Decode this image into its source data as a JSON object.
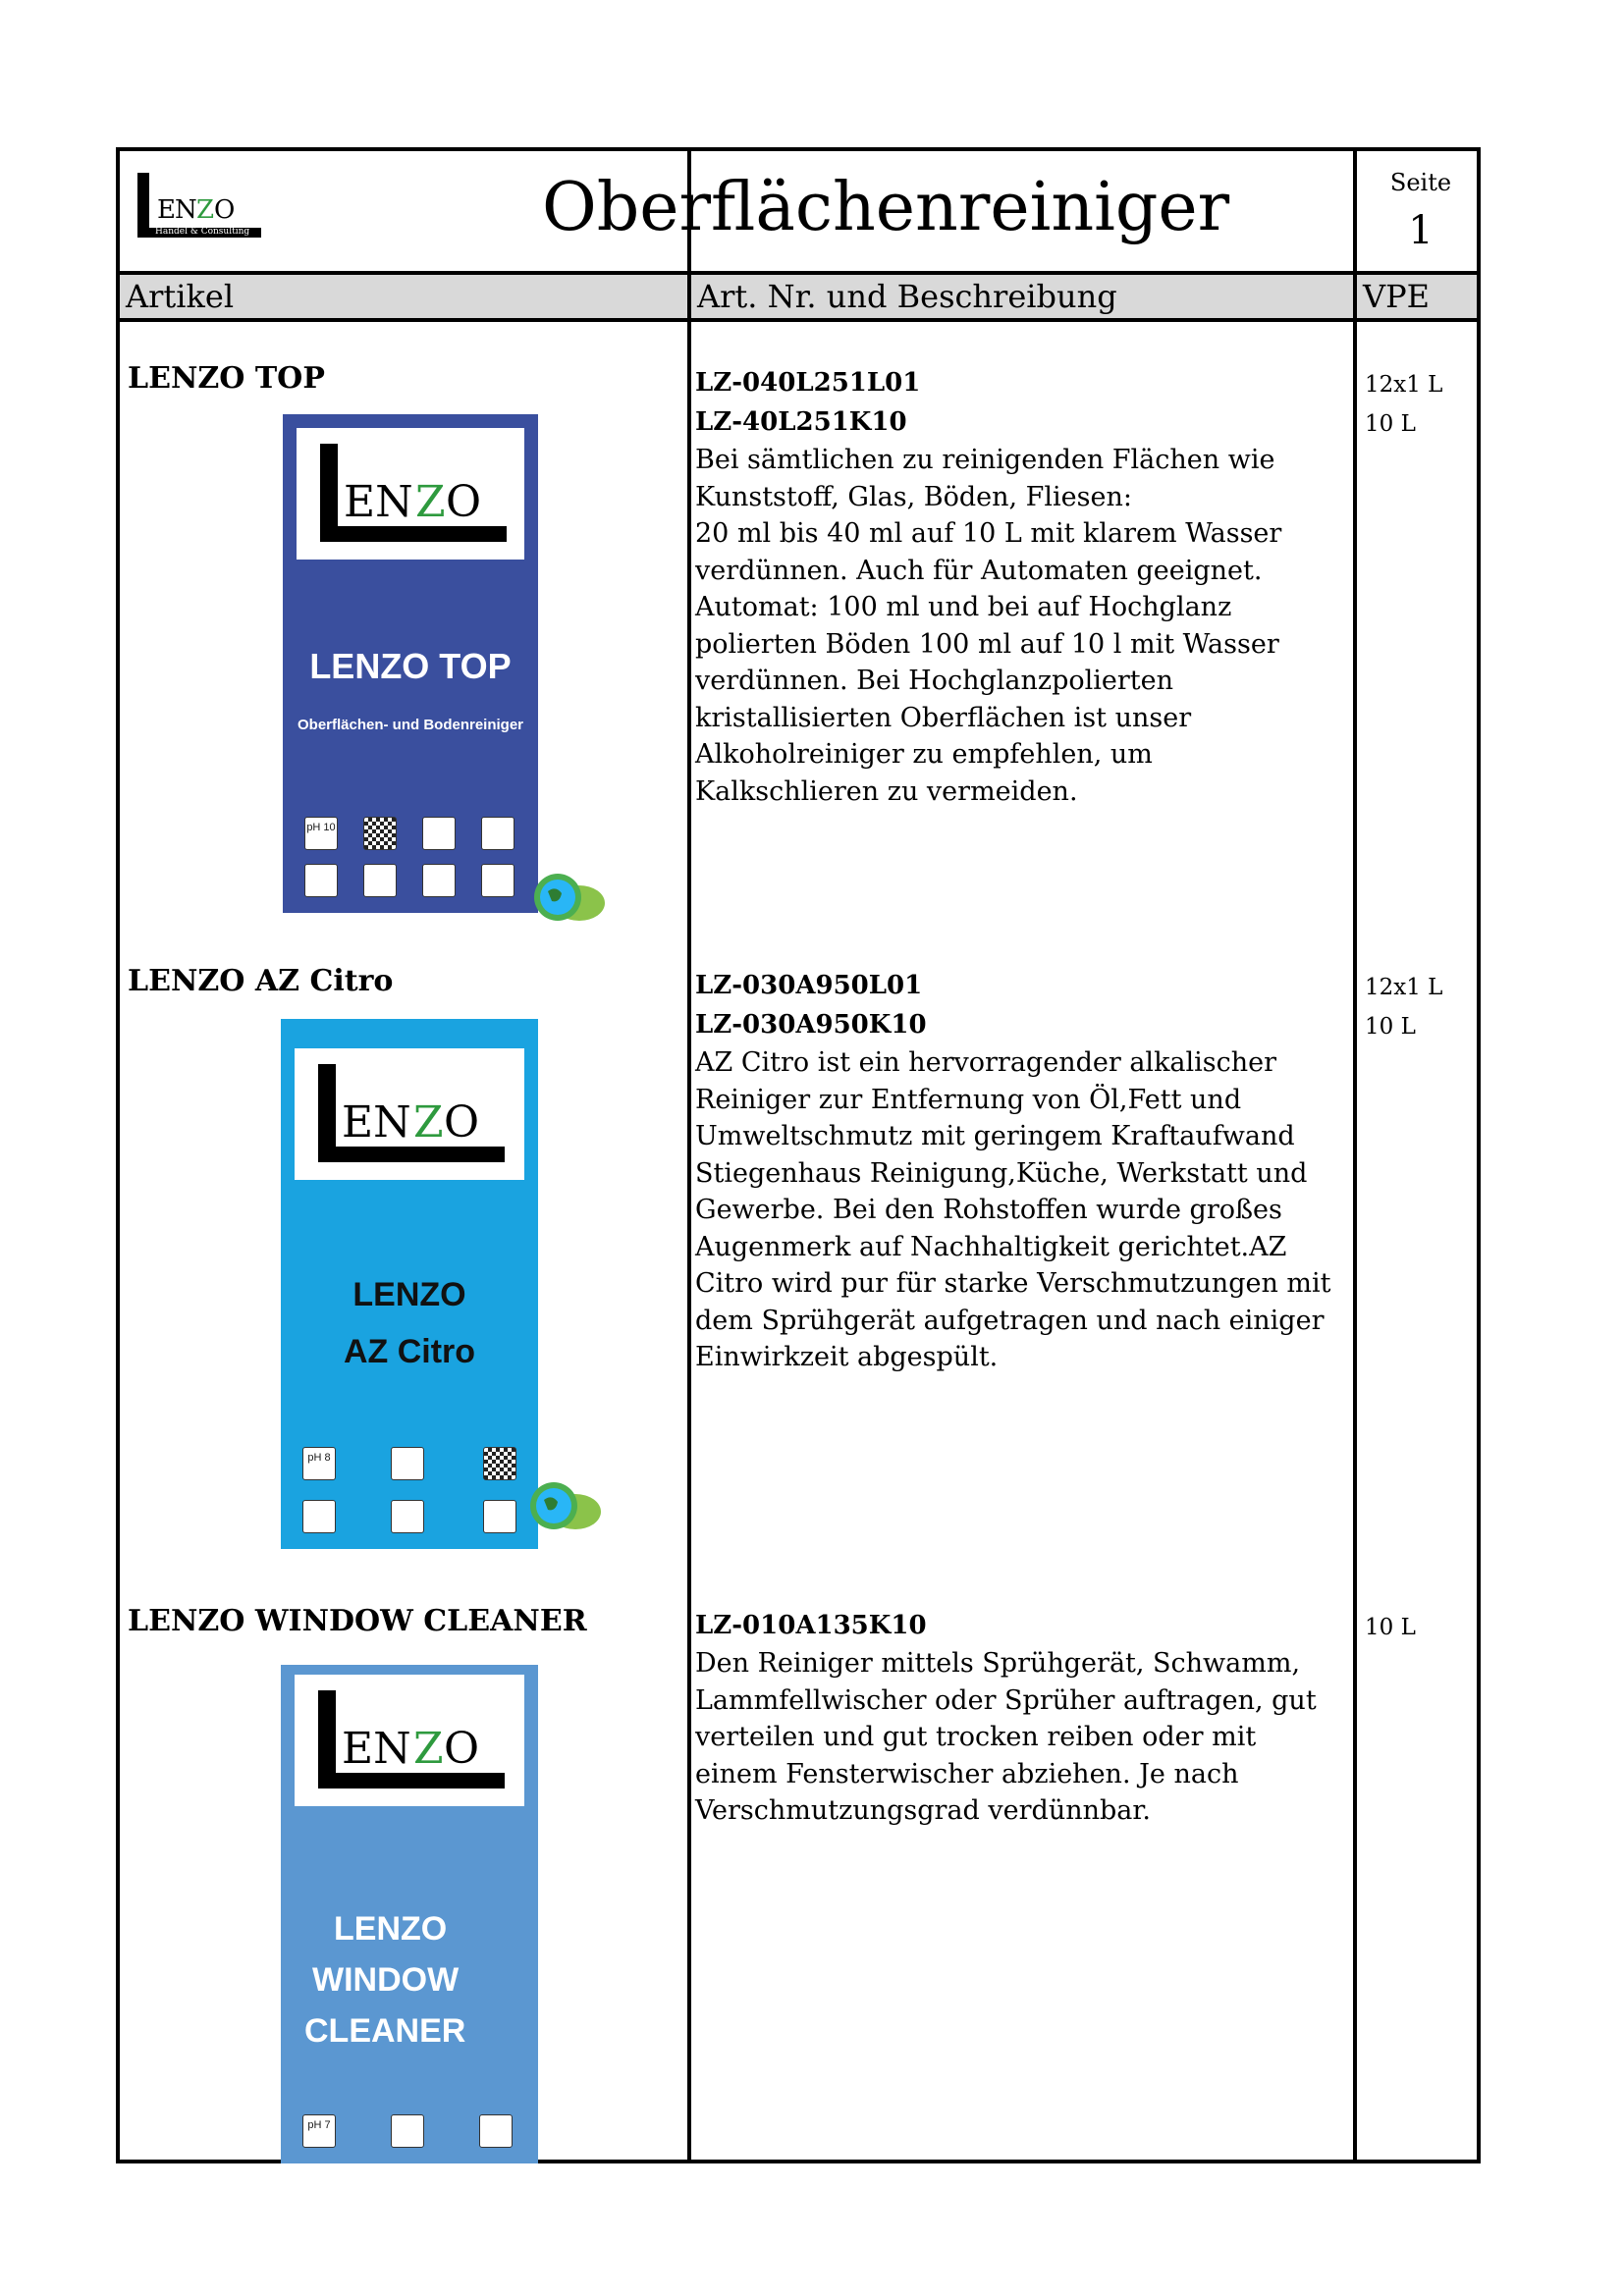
{
  "header": {
    "logo_text": "LENZO",
    "logo_sub": "Handel & Consulting",
    "title": "Oberflächenreiniger",
    "seite_label": "Seite",
    "seite_num": "1"
  },
  "columns": {
    "artikel": "Artikel",
    "beschreibung": "Art. Nr. und Beschreibung",
    "vpe": "VPE"
  },
  "products": [
    {
      "name": "LENZO TOP",
      "codes": [
        "LZ-040L251L01",
        "LZ-40L251K10"
      ],
      "vpe": [
        "12x1 L",
        "10 L"
      ],
      "description": [
        "Bei sämtlichen zu reinigenden Flächen wie",
        "Kunststoff, Glas, Böden, Fliesen:",
        "20 ml bis 40 ml auf 10 L mit klarem Wasser",
        "verdünnen. Auch für Automaten geeignet.",
        "Automat: 100 ml und bei auf Hochglanz",
        "polierten Böden 100 ml auf 10 l mit Wasser",
        "verdünnen. Bei Hochglanzpolierten",
        "kristallisierten Oberflächen ist unser",
        "Alkoholreiniger zu empfehlen, um",
        "Kalkschlieren zu vermeiden."
      ],
      "label_logo": "LENZO",
      "label_title": "LENZO TOP",
      "label_sub": "Oberflächen- und Bodenreiniger",
      "label_ph": "pH 10",
      "color": "#3a4f9e"
    },
    {
      "name": "LENZO AZ Citro",
      "codes": [
        "LZ-030A950L01",
        "LZ-030A950K10"
      ],
      "vpe": [
        "12x1 L",
        "10 L"
      ],
      "description": [
        "AZ Citro ist ein hervorragender alkalischer",
        "Reiniger zur Entfernung von Öl,Fett und",
        "Umweltschmutz mit geringem Kraftaufwand",
        "Stiegenhaus Reinigung,Küche, Werkstatt und",
        "Gewerbe. Bei den Rohstoffen wurde großes",
        "Augenmerk auf Nachhaltigkeit gerichtet.AZ",
        "Citro wird pur für starke Verschmutzungen mit",
        "dem Sprühgerät aufgetragen und nach einiger",
        "Einwirkzeit abgespült."
      ],
      "label_logo": "LENZO",
      "label_title_1": "LENZO",
      "label_title_2": "AZ Citro",
      "label_ph": "pH 8",
      "color": "#1aa3e0"
    },
    {
      "name": "LENZO WINDOW CLEANER",
      "codes": [
        "LZ-010A135K10"
      ],
      "vpe": [
        "10 L"
      ],
      "description": [
        "Den Reiniger mittels Sprühgerät, Schwamm,",
        "Lammfellwischer oder Sprüher auftragen, gut",
        "verteilen und gut trocken reiben oder mit",
        "einem Fensterwischer abziehen. Je nach",
        "Verschmutzungsgrad verdünnbar."
      ],
      "label_logo": "LENZO",
      "label_title_1": "LENZO",
      "label_title_2": "WINDOW",
      "label_title_3": "CLEANER",
      "label_ph": "pH 7",
      "color": "#5b97d1"
    }
  ]
}
